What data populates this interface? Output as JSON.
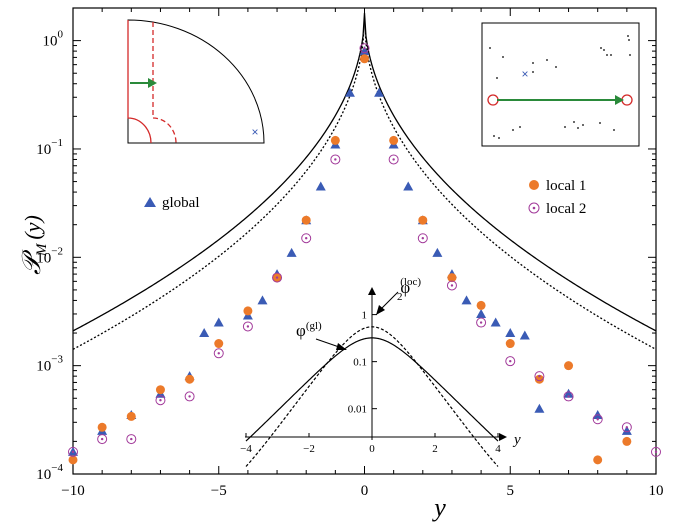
{
  "chart_data": {
    "type": "scatter",
    "title": "",
    "xlabel": "y",
    "ylabel": "𝒫",
    "ylabel_sub": "M",
    "ylabel_arg": "(y)",
    "xlim": [
      -10,
      10
    ],
    "ylim": [
      0.0001,
      2
    ],
    "yscale": "log",
    "x_ticks": [
      -10,
      -5,
      0,
      5,
      10
    ],
    "x_tick_labels": [
      "−10",
      "−5",
      "0",
      "5",
      "10"
    ],
    "y_tick_values": [
      0.0001,
      0.001,
      0.01,
      0.1,
      1
    ],
    "y_tick_bases": [
      "10",
      "10",
      "10",
      "10",
      "10"
    ],
    "y_tick_exps": [
      "−4",
      "−3",
      "−2",
      "−1",
      "0"
    ],
    "legend": {
      "global": "global",
      "local1": "local 1",
      "local2": "local 2"
    },
    "series": [
      {
        "name": "global",
        "marker": "triangle",
        "color": "#3a5bb5",
        "x": [
          -10,
          -9,
          -8,
          -7,
          -6,
          -5.5,
          -5,
          -4,
          -3.5,
          -3,
          -2.5,
          -2,
          -1.5,
          -1,
          -0.5,
          0,
          0.5,
          1,
          1.5,
          2,
          2.5,
          3,
          3.5,
          4,
          4.5,
          5,
          5.5,
          6,
          7,
          8,
          9
        ],
        "y": [
          0.00016,
          0.00025,
          0.00035,
          0.00055,
          0.0008,
          0.002,
          0.0025,
          0.0029,
          0.004,
          0.007,
          0.011,
          0.022,
          0.045,
          0.11,
          0.33,
          0.8,
          0.33,
          0.11,
          0.045,
          0.022,
          0.011,
          0.007,
          0.004,
          0.003,
          0.0025,
          0.002,
          0.0019,
          0.0004,
          0.00055,
          0.00035,
          0.00025
        ]
      },
      {
        "name": "local 1",
        "marker": "filled-circle",
        "color": "#ec7a2a",
        "x": [
          -10,
          -9,
          -8,
          -7,
          -6,
          -5,
          -4,
          -3,
          -2,
          -1,
          0,
          1,
          2,
          3,
          4,
          5,
          6,
          7,
          8,
          9
        ],
        "y": [
          0.000135,
          0.00027,
          0.00034,
          0.0006,
          0.00075,
          0.0016,
          0.0032,
          0.0065,
          0.022,
          0.12,
          0.68,
          0.12,
          0.022,
          0.0065,
          0.0036,
          0.0016,
          0.00075,
          0.001,
          0.000135,
          0.0002
        ]
      },
      {
        "name": "local 2",
        "marker": "open-circle",
        "color": "#a23a9a",
        "x": [
          -10,
          -9,
          -8,
          -7,
          -6,
          -5,
          -4,
          -3,
          -2,
          -1,
          0,
          1,
          2,
          3,
          4,
          5,
          6,
          7,
          8,
          9,
          10
        ],
        "y": [
          0.00016,
          0.00021,
          0.00021,
          0.00048,
          0.00052,
          0.0013,
          0.0023,
          0.0065,
          0.015,
          0.08,
          0.85,
          0.08,
          0.015,
          0.0055,
          0.0025,
          0.0011,
          0.0008,
          0.00052,
          0.00032,
          0.00027,
          0.00016
        ]
      }
    ],
    "curves": [
      {
        "style": "solid"
      },
      {
        "style": "dotted"
      }
    ],
    "inset_plot": {
      "xlabel": "y",
      "xlim": [
        -4,
        4
      ],
      "yscale": "log",
      "x_ticks": [
        -4,
        -2,
        0,
        2,
        4
      ],
      "x_tick_labels": [
        "−4",
        "−2",
        "0",
        "2",
        "4"
      ],
      "y_ticks": [
        0.01,
        0.1,
        1
      ],
      "y_tick_labels": [
        "0.01",
        "0.1",
        "1"
      ],
      "label_gl_main": "φ",
      "label_gl_sup": "(gl)",
      "label_loc_main": "φ",
      "label_loc_sub": "2",
      "label_loc_sup": "(loc)"
    },
    "inset_schematics": {
      "left_marker": "×",
      "right_marker": "×"
    }
  },
  "colors": {
    "blue": "#3a5bb5",
    "orange": "#ec7a2a",
    "purple": "#a23a9a",
    "red": "#d42a2a",
    "green": "#2a8a3a"
  }
}
